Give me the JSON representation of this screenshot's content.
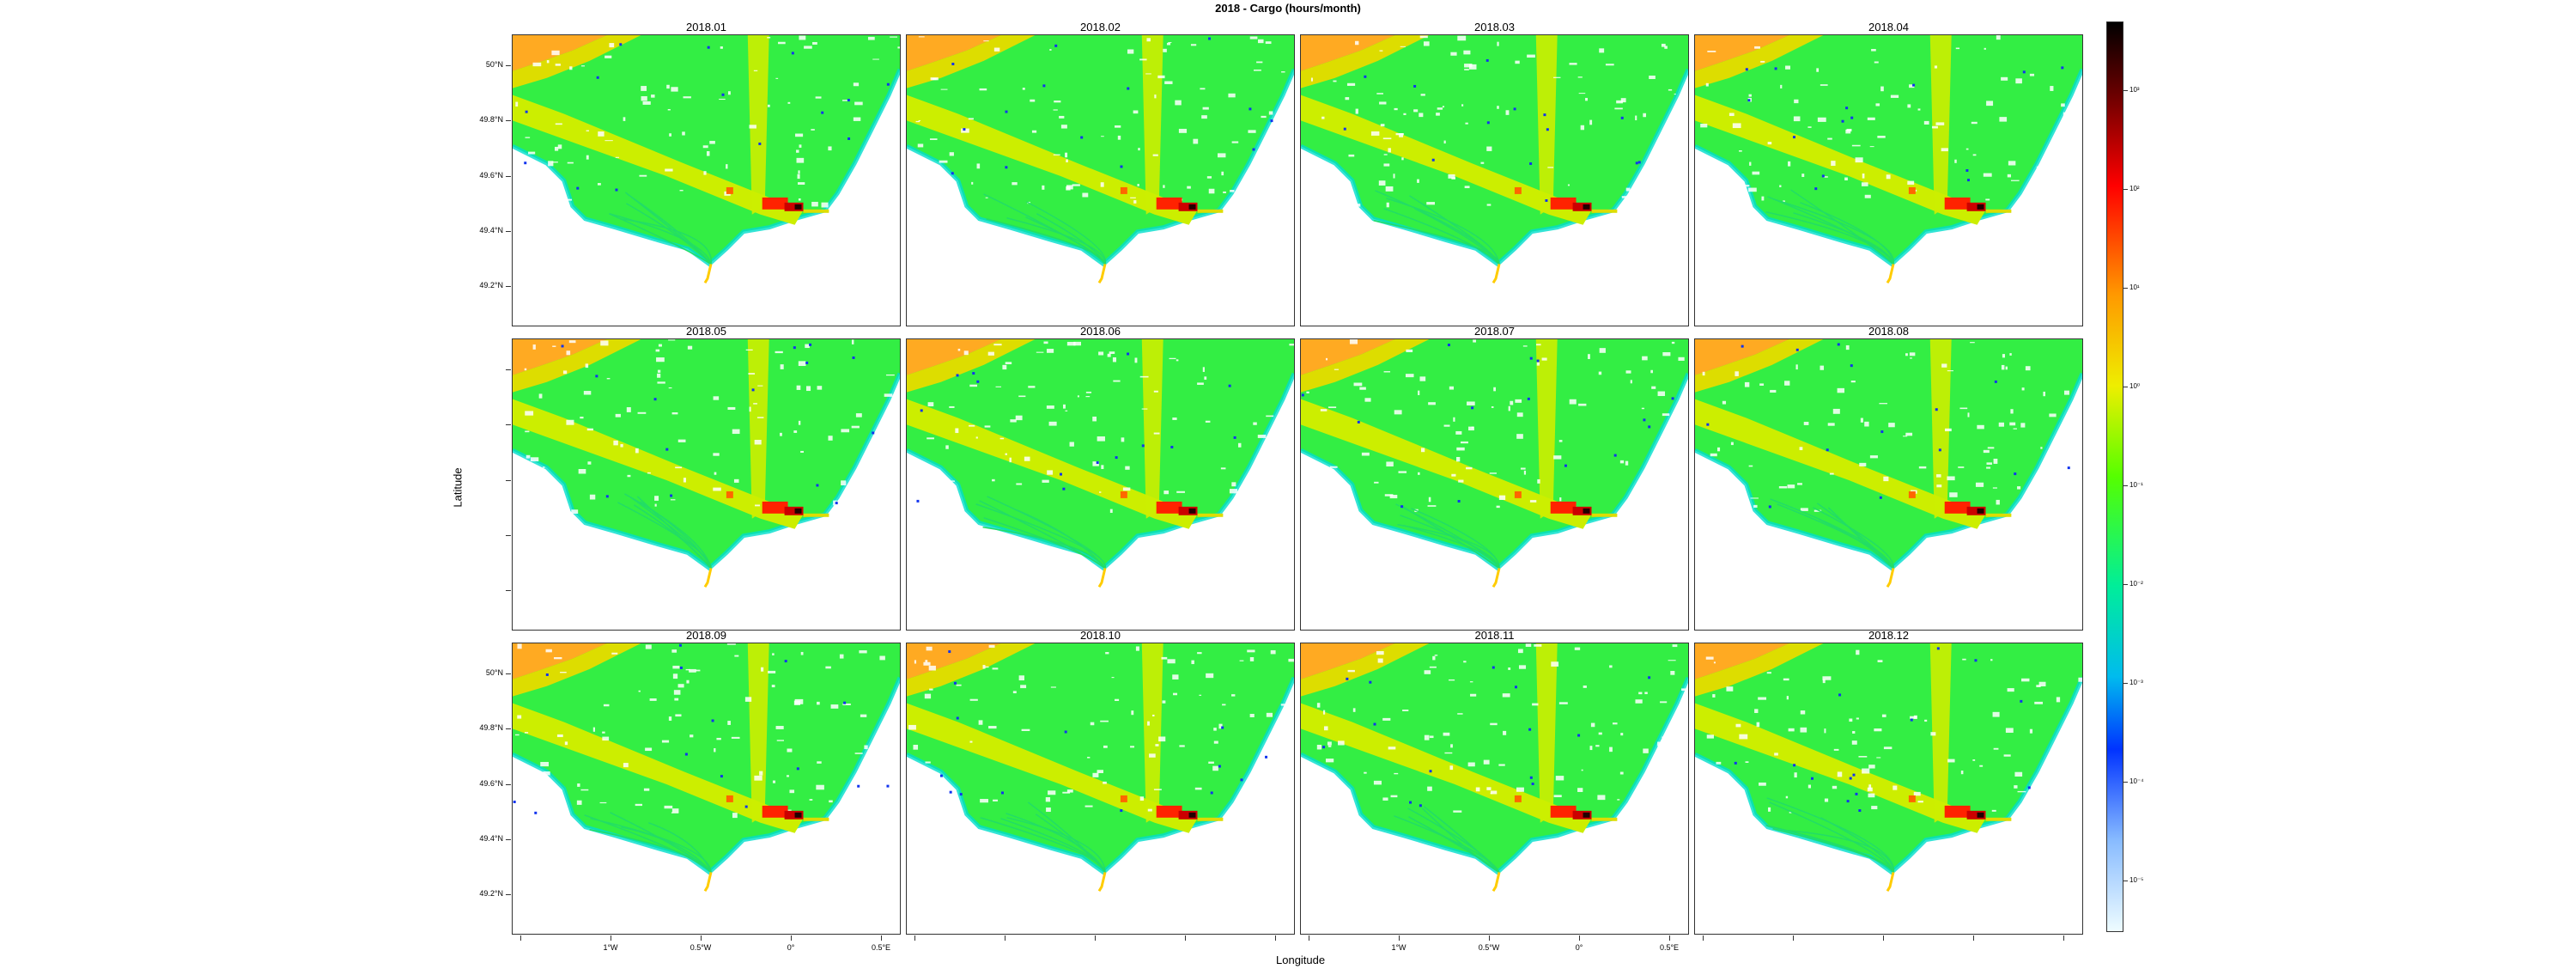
{
  "title": "2018 - Cargo (hours/month)",
  "xlabel": "Longitude",
  "ylabel": "Latitude",
  "panels": [
    "2018.01",
    "2018.02",
    "2018.03",
    "2018.04",
    "2018.05",
    "2018.06",
    "2018.07",
    "2018.08",
    "2018.09",
    "2018.10",
    "2018.11",
    "2018.12"
  ],
  "y_ticks": [
    "50°N",
    "49.8°N",
    "49.6°N",
    "49.4°N",
    "49.2°N"
  ],
  "x_ticks": [
    "1°W",
    "0.5°W",
    "0°",
    "0.5°E"
  ],
  "colorbar": {
    "scale": "log",
    "ticks": [
      "10³",
      "10²",
      "10¹",
      "10⁰",
      "10⁻¹",
      "10⁻²",
      "10⁻³",
      "10⁻⁴",
      "10⁻⁵"
    ],
    "colors": [
      "#000000",
      "#8b0000",
      "#ff0000",
      "#ff8c00",
      "#ffd700",
      "#ccff00",
      "#00ff00",
      "#00ffcc",
      "#00bfff",
      "#0000ff",
      "#a0c8ff",
      "#e0f8ff"
    ]
  },
  "colors": {
    "land": "#ffffff",
    "sea_base": "#33ee44",
    "lane": "#ccee00",
    "port": "#ff2200",
    "coast": "#00ddcc"
  }
}
